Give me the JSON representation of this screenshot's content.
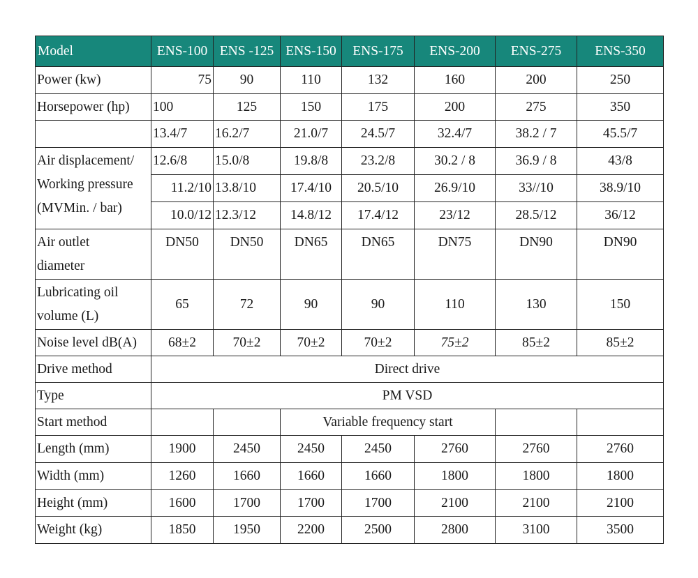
{
  "colors": {
    "header_bg": "#17877b",
    "header_text": "#ffffff",
    "border": "#222222"
  },
  "header": {
    "label": "Model",
    "models": [
      "ENS-100",
      "ENS -125",
      "ENS-150",
      "ENS-175",
      "ENS-200",
      "ENS-275",
      "ENS-350"
    ]
  },
  "rows": {
    "power": {
      "label": "Power (kw)",
      "values": [
        "75",
        "90",
        "110",
        "132",
        "160",
        "200",
        "250"
      ]
    },
    "horsepower": {
      "label": "Horsepower (hp)",
      "values": [
        "100",
        "125",
        "150",
        "175",
        "200",
        "275",
        "350"
      ]
    },
    "air_displacement": {
      "label_line1": "Air displacement/",
      "label_line2": "Working pressure",
      "label_line3": "(MVMin. / bar)",
      "rows": [
        [
          "13.4/7",
          "16.2/7",
          "21.0/7",
          "24.5/7",
          "32.4/7",
          "38.2 / 7",
          "45.5/7"
        ],
        [
          "12.6/8",
          "15.0/8",
          "19.8/8",
          "23.2/8",
          "30.2 / 8",
          "36.9 / 8",
          "43/8"
        ],
        [
          "11.2/10",
          "13.8/10",
          "17.4/10",
          "20.5/10",
          "26.9/10",
          "33//10",
          "38.9/10"
        ],
        [
          "10.0/12",
          "12.3/12",
          "14.8/12",
          "17.4/12",
          "23/12",
          "28.5/12",
          "36/12"
        ]
      ]
    },
    "outlet": {
      "label_line1": "Air outlet",
      "label_line2": "diameter",
      "values": [
        "DN50",
        "DN50",
        "DN65",
        "DN65",
        "DN75",
        "DN90",
        "DN90"
      ]
    },
    "oil": {
      "label_line1": "Lubricating oil",
      "label_line2": "volume (L)",
      "values": [
        "65",
        "72",
        "90",
        "90",
        "110",
        "130",
        "150"
      ]
    },
    "noise": {
      "label": "Noise level dB(A)",
      "values": [
        "68±2",
        "70±2",
        "70±2",
        "70±2",
        "75±2",
        "85±2",
        "85±2"
      ]
    },
    "drive": {
      "label": "Drive method",
      "value": "Direct drive"
    },
    "type": {
      "label": "Type",
      "value": "PM VSD"
    },
    "start": {
      "label": "Start method",
      "value": "Variable frequency start"
    },
    "length": {
      "label": "Length (mm)",
      "values": [
        "1900",
        "2450",
        "2450",
        "2450",
        "2760",
        "2760",
        "2760"
      ]
    },
    "width": {
      "label": "Width (mm)",
      "values": [
        "1260",
        "1660",
        "1660",
        "1660",
        "1800",
        "1800",
        "1800"
      ]
    },
    "height": {
      "label": "Height (mm)",
      "values": [
        "1600",
        "1700",
        "1700",
        "1700",
        "2100",
        "2100",
        "2100"
      ]
    },
    "weight": {
      "label": "Weight (kg)",
      "values": [
        "1850",
        "1950",
        "2200",
        "2500",
        "2800",
        "3100",
        "3500"
      ]
    }
  }
}
